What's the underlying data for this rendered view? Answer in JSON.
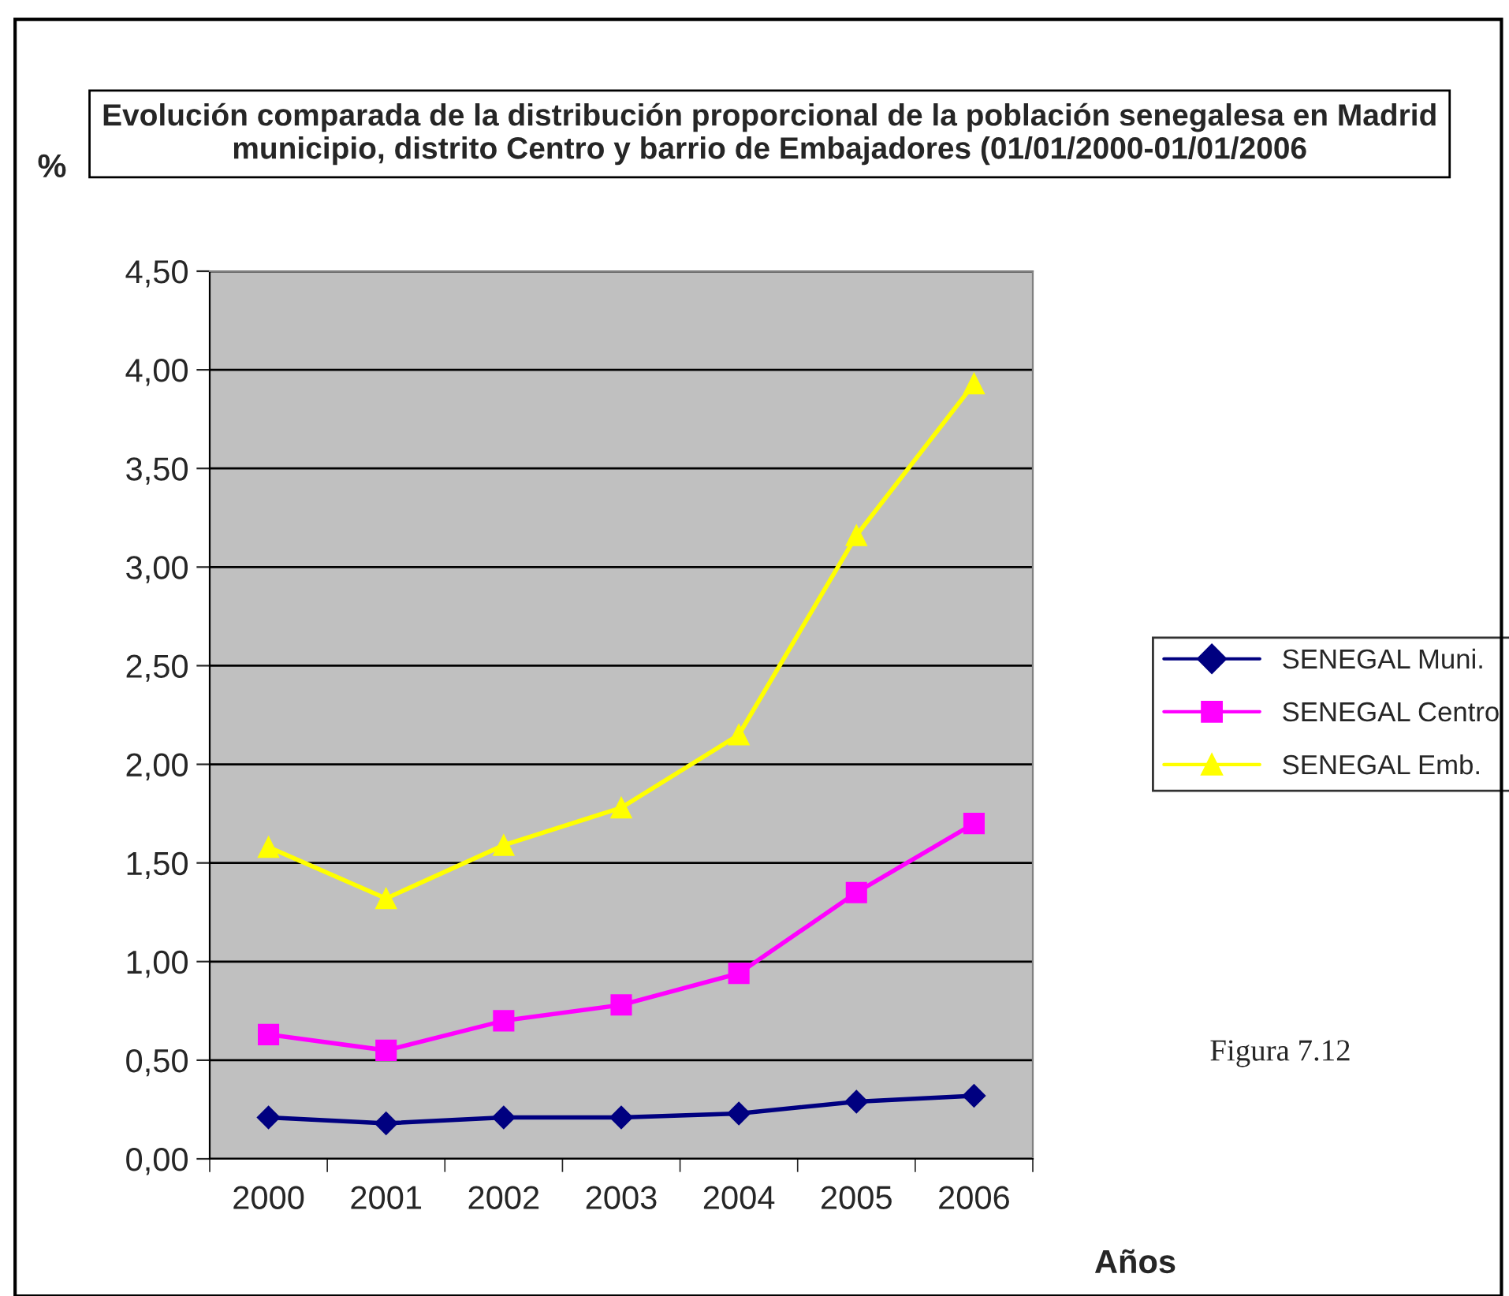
{
  "chart_data": {
    "type": "line",
    "title": "Evolución comparada de la distribución proporcional de la población senegalesa en Madrid municipio, distrito Centro y barrio de Embajadores (01/01/2000-01/01/2006",
    "ylabel": "%",
    "xlabel": "Años",
    "categories": [
      "2000",
      "2001",
      "2002",
      "2003",
      "2004",
      "2005",
      "2006"
    ],
    "series": [
      {
        "name": "SENEGAL Muni.",
        "color": "#000080",
        "marker": "diamond",
        "values": [
          0.21,
          0.18,
          0.21,
          0.21,
          0.23,
          0.29,
          0.32
        ]
      },
      {
        "name": "SENEGAL Centro",
        "color": "#ff00ff",
        "marker": "square",
        "values": [
          0.63,
          0.55,
          0.7,
          0.78,
          0.94,
          1.35,
          1.7
        ]
      },
      {
        "name": "SENEGAL Emb.",
        "color": "#ffff00",
        "marker": "triangle",
        "values": [
          1.58,
          1.32,
          1.59,
          1.78,
          2.15,
          3.16,
          3.93
        ]
      }
    ],
    "ylim": [
      0,
      4.5
    ],
    "yticks": [
      {
        "value": 0,
        "label": "0,00"
      },
      {
        "value": 0.5,
        "label": "0,50"
      },
      {
        "value": 1,
        "label": "1,00"
      },
      {
        "value": 1.5,
        "label": "1,50"
      },
      {
        "value": 2,
        "label": "2,00"
      },
      {
        "value": 2.5,
        "label": "2,50"
      },
      {
        "value": 3,
        "label": "3,00"
      },
      {
        "value": 3.5,
        "label": "3,50"
      },
      {
        "value": 4,
        "label": "4,00"
      },
      {
        "value": 4.5,
        "label": "4,50"
      }
    ],
    "grid": "y",
    "legend": "right",
    "line_style": "solid",
    "annotations": [
      "Figura 7.12"
    ]
  }
}
